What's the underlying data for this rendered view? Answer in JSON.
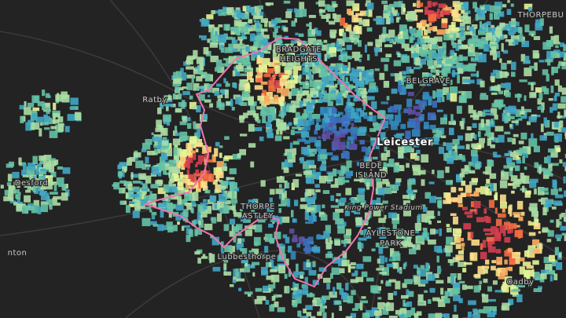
{
  "map": {
    "labels": [
      {
        "lines": [
          "THORPEBU"
        ]
      },
      {
        "lines": [
          "BRADGATE",
          "HEIGHTS"
        ]
      },
      {
        "lines": [
          "BELGRAVE"
        ]
      },
      {
        "lines": [
          "Leicester"
        ]
      },
      {
        "lines": [
          "BEDE",
          "ISLAND"
        ]
      },
      {
        "lines": [
          "THORPE",
          "ASTLEY"
        ]
      },
      {
        "lines": [
          "King Power Stadium"
        ]
      },
      {
        "lines": [
          "AYLESTONE",
          "PARK"
        ]
      },
      {
        "lines": [
          "Lubbesthorpe"
        ]
      },
      {
        "lines": [
          "Ratby"
        ]
      },
      {
        "lines": [
          "Desford"
        ]
      },
      {
        "lines": [
          "Oadby"
        ]
      },
      {
        "lines": [
          "nton"
        ]
      }
    ]
  }
}
